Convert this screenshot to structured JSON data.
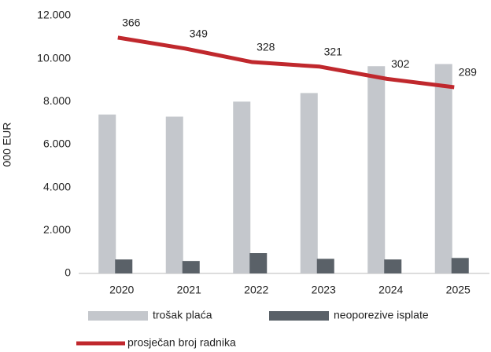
{
  "chart_data": {
    "type": "bar_line",
    "y_axis_label": "000 EUR",
    "categories": [
      "2020",
      "2021",
      "2022",
      "2023",
      "2024",
      "2025"
    ],
    "series": [
      {
        "name": "trošak plaća",
        "type": "bar",
        "color": "#c4c7cc",
        "values": [
          7400,
          7300,
          8000,
          8400,
          9650,
          9750
        ]
      },
      {
        "name": "neoporezive isplate",
        "type": "bar",
        "color": "#5a6168",
        "values": [
          650,
          580,
          950,
          680,
          650,
          720
        ]
      },
      {
        "name": "prosječan broj radnika",
        "type": "line",
        "axis": "y2",
        "color": "#c0282d",
        "values": [
          366,
          349,
          328,
          321,
          302,
          289
        ]
      }
    ],
    "ylim": [
      0,
      12000
    ],
    "yticks": [
      0,
      {
        "value": 2000,
        "label": "2.000"
      },
      {
        "value": 4000,
        "label": "4.000"
      },
      {
        "value": 6000,
        "label": "6.000"
      },
      {
        "value": 8000,
        "label": "8.000"
      },
      {
        "value": 10000,
        "label": "10.000"
      },
      {
        "value": 12000,
        "label": "12.000"
      }
    ],
    "y2lim": [
      0,
      400
    ],
    "grid": false
  }
}
